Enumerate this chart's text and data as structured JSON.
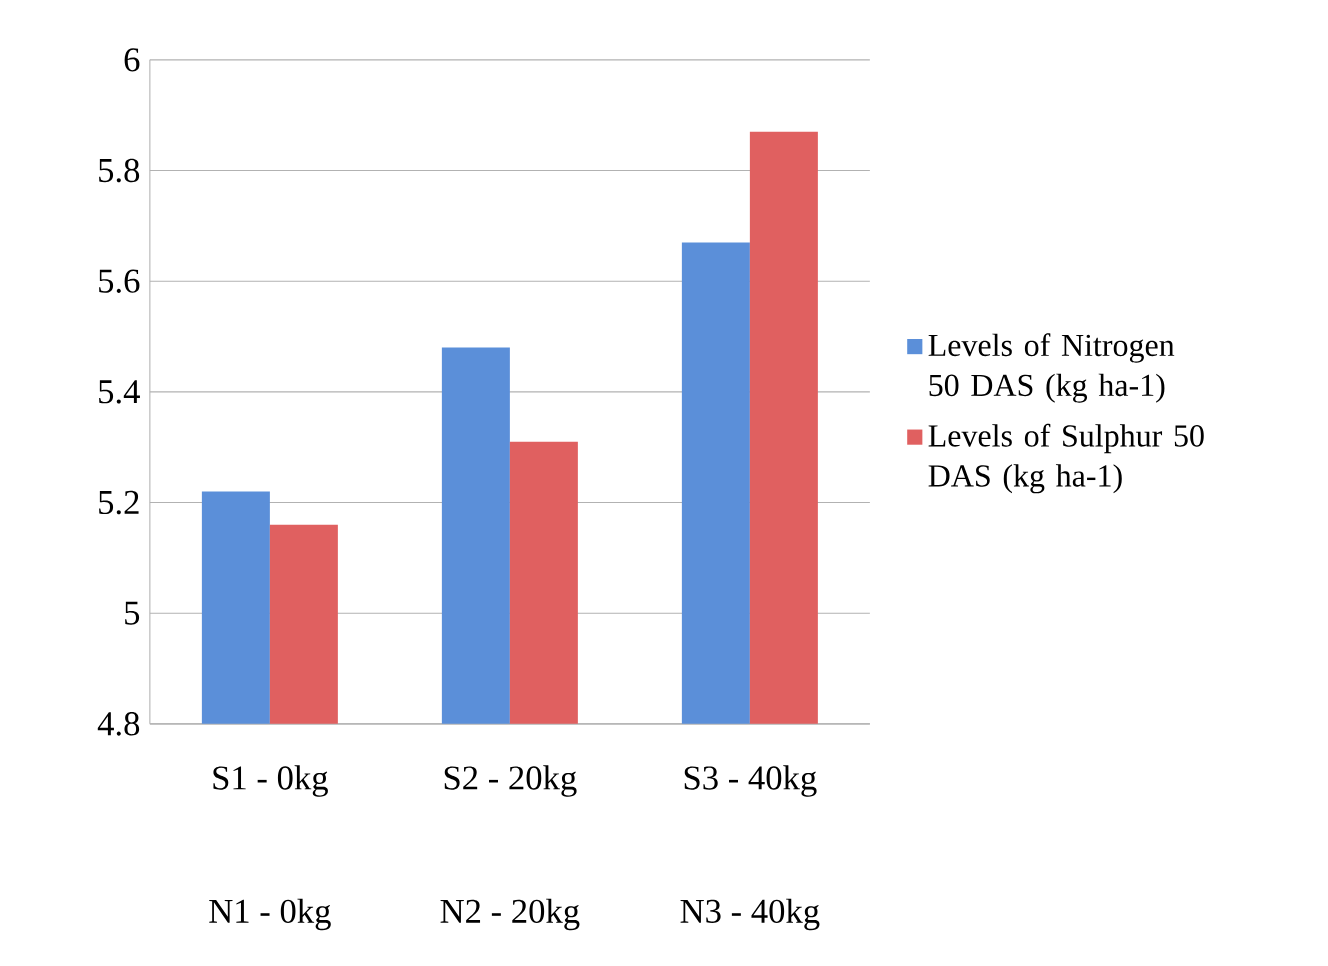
{
  "chart_data": {
    "type": "bar",
    "categories": [
      "S1 -  0kg",
      "S2 -  20kg",
      "S3 -  40kg"
    ],
    "annotations": [
      "N1 - 0kg",
      "N2 - 20kg",
      "N3 - 40kg"
    ],
    "series": [
      {
        "name": "Levels of Nitrogen 50 DAS (kg ha-1)",
        "color": "#5b8fd9",
        "values": [
          5.22,
          5.48,
          5.67
        ]
      },
      {
        "name": "Levels of Sulphur 50 DAS (kg ha-1)",
        "color": "#e06060",
        "values": [
          5.16,
          5.31,
          5.87
        ]
      }
    ],
    "ylim": [
      4.8,
      6
    ],
    "yticks": [
      4.8,
      5,
      5.2,
      5.4,
      5.6,
      5.8,
      6
    ],
    "grid": "y",
    "legend": "right"
  }
}
